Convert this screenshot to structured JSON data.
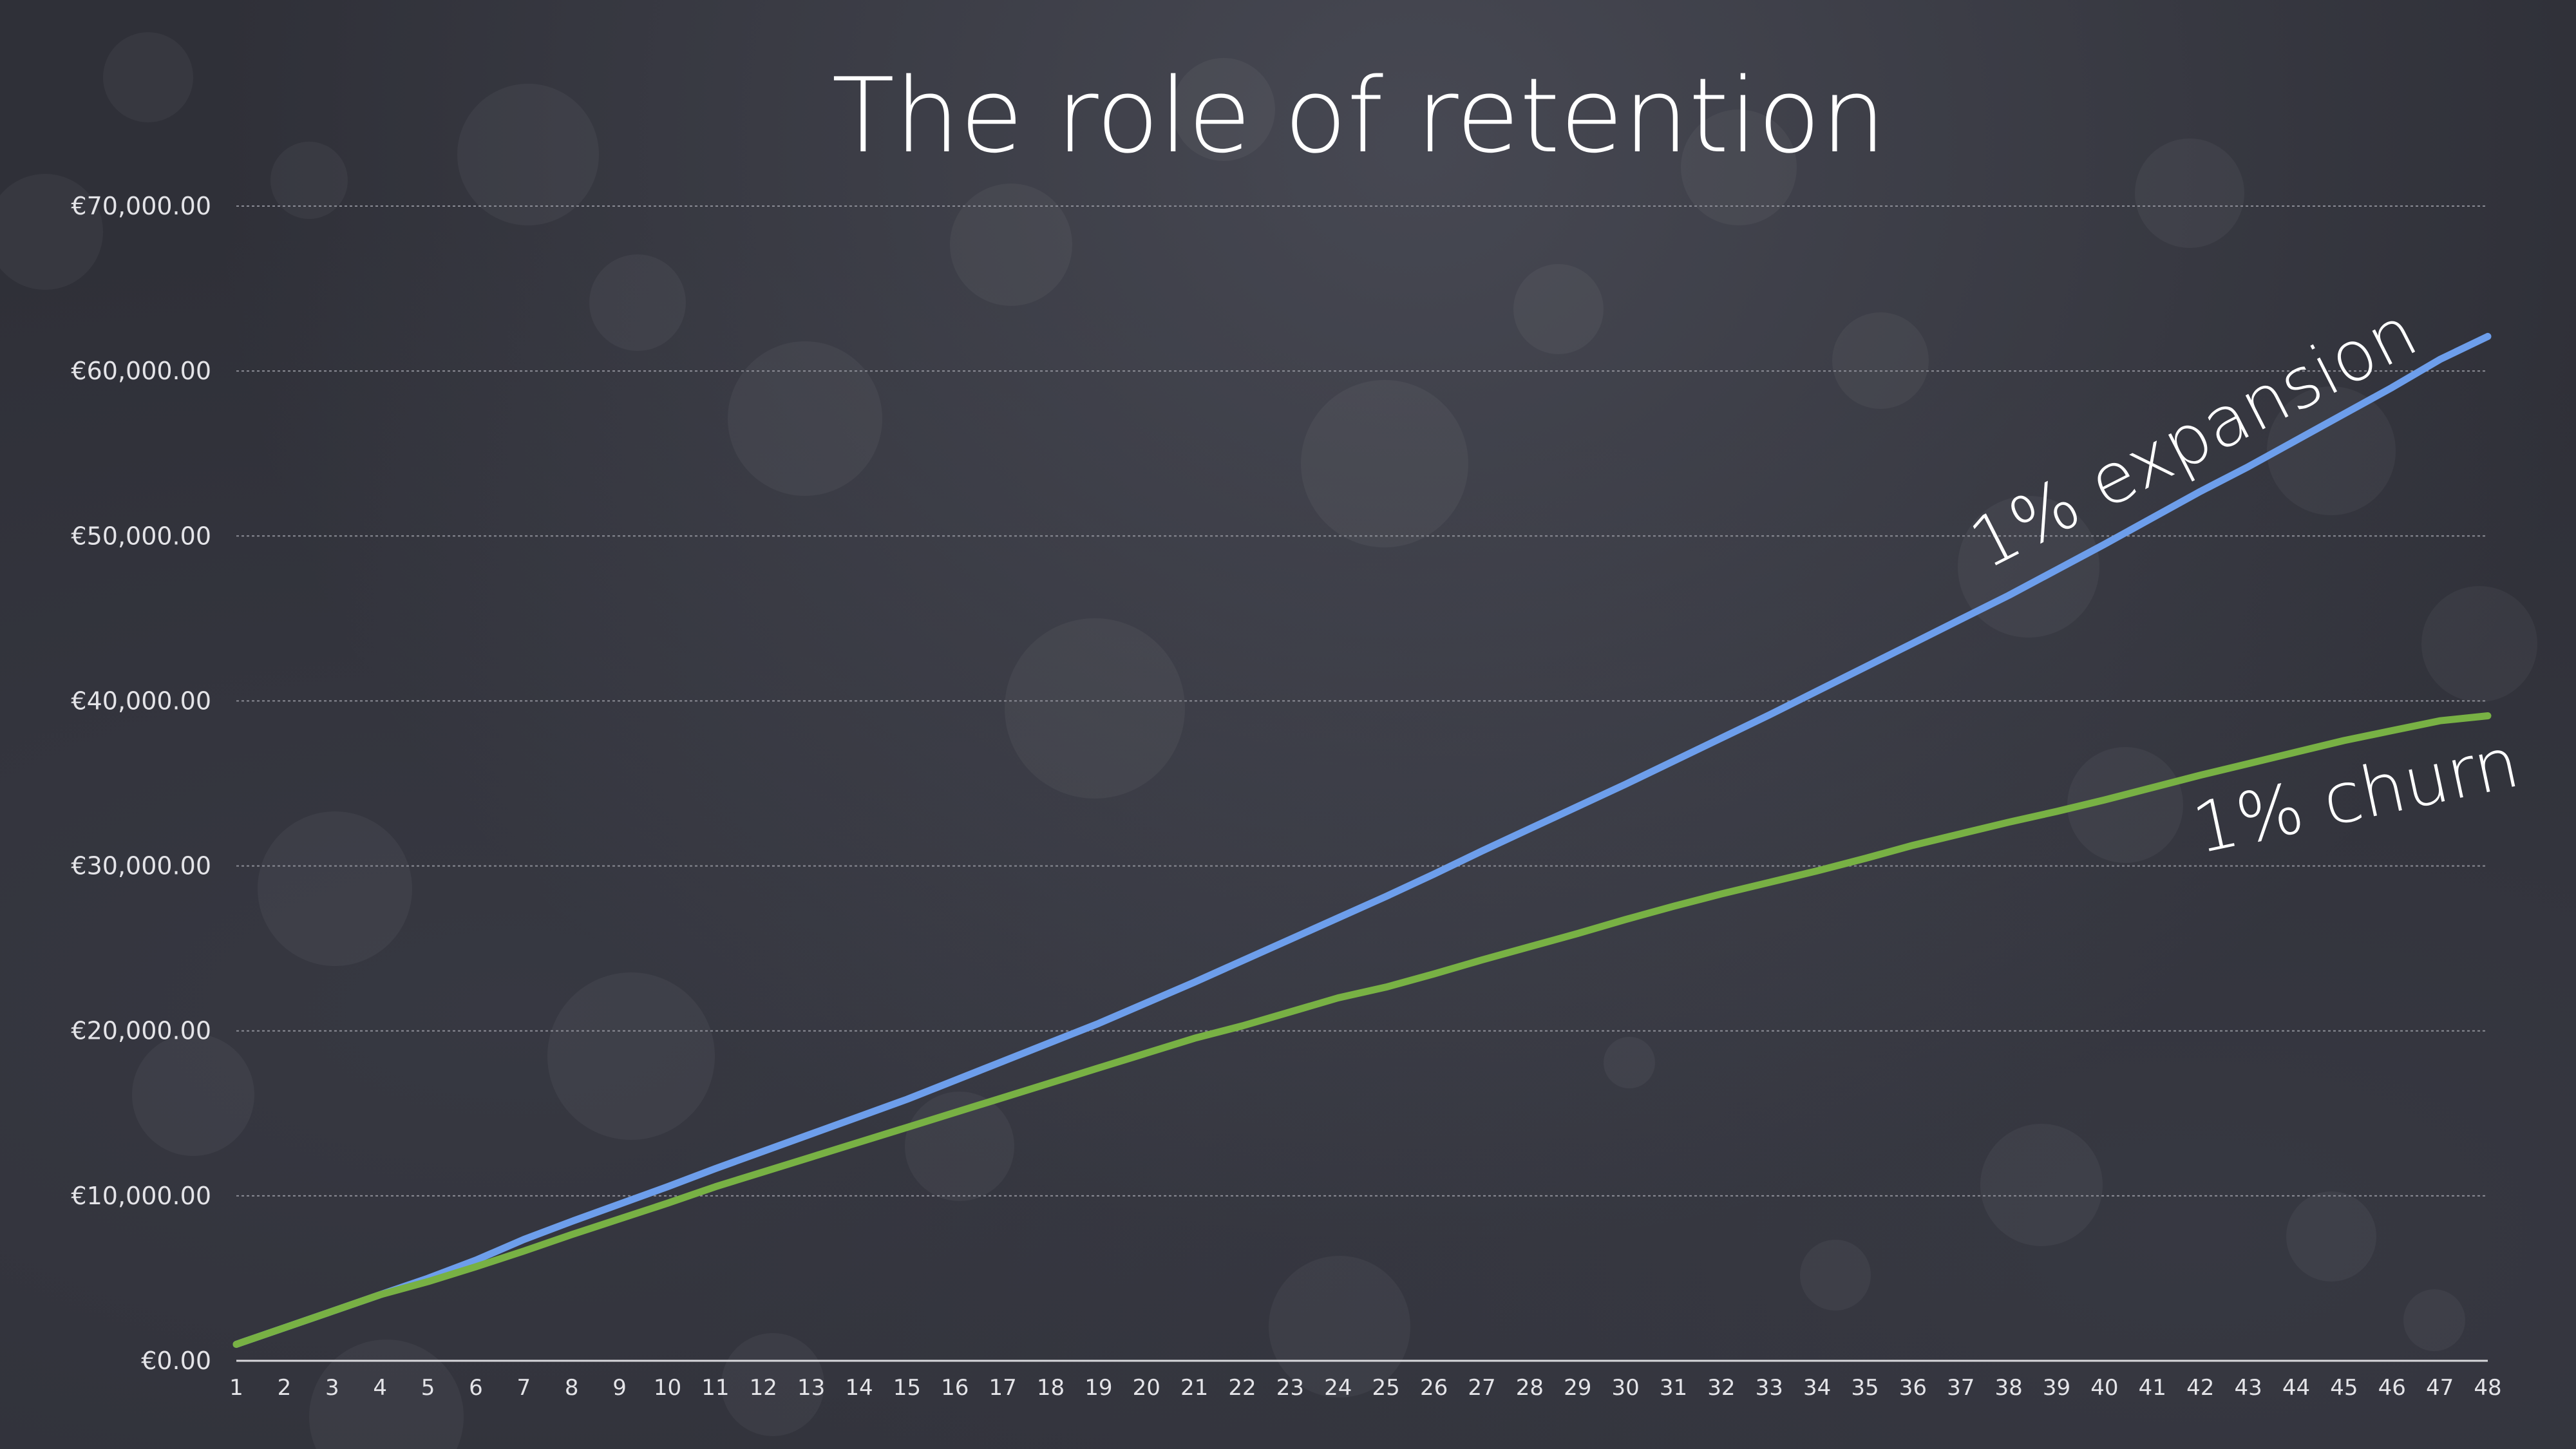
{
  "chart_data": {
    "type": "line",
    "title": "The role of retention",
    "xlabel": "",
    "ylabel": "",
    "x": [
      1,
      2,
      3,
      4,
      5,
      6,
      7,
      8,
      9,
      10,
      11,
      12,
      13,
      14,
      15,
      16,
      17,
      18,
      19,
      20,
      21,
      22,
      23,
      24,
      25,
      26,
      27,
      28,
      29,
      30,
      31,
      32,
      33,
      34,
      35,
      36,
      37,
      38,
      39,
      40,
      41,
      42,
      43,
      44,
      45,
      46,
      47,
      48
    ],
    "ylim": [
      0,
      70000
    ],
    "y_ticks": [
      0,
      10000,
      20000,
      30000,
      40000,
      50000,
      60000,
      70000
    ],
    "y_tick_labels": [
      "€0.00",
      "€10,000.00",
      "€20,000.00",
      "€30,000.00",
      "€40,000.00",
      "€50,000.00",
      "€60,000.00",
      "€70,000.00"
    ],
    "grid": true,
    "legend": "none",
    "series": [
      {
        "color": "#6d9eeb",
        "values": [
          1000,
          2000,
          3000,
          4000,
          5000,
          6100,
          7350,
          8450,
          9500,
          10550,
          11650,
          12700,
          13750,
          14800,
          15850,
          17000,
          18150,
          19300,
          20450,
          21700,
          22950,
          24250,
          25550,
          26850,
          28150,
          29500,
          30900,
          32250,
          33600,
          34950,
          36350,
          37750,
          39150,
          40600,
          42050,
          43500,
          44950,
          46400,
          47950,
          49500,
          51100,
          52700,
          54200,
          55800,
          57400,
          59000,
          60700,
          62100
        ]
      },
      {
        "color": "#78b144",
        "values": [
          1000,
          2000,
          3000,
          4000,
          4800,
          5700,
          6650,
          7650,
          8600,
          9550,
          10550,
          11450,
          12350,
          13250,
          14150,
          15050,
          15950,
          16850,
          17750,
          18650,
          19550,
          20300,
          21150,
          22000,
          22650,
          23450,
          24300,
          25100,
          25900,
          26750,
          27550,
          28300,
          29000,
          29700,
          30450,
          31250,
          31950,
          32650,
          33300,
          34000,
          34750,
          35500,
          36200,
          36900,
          37600,
          38200,
          38800,
          39100
        ]
      }
    ],
    "annotations": [
      {
        "text": "1% expansion",
        "series_index": 0
      },
      {
        "text": "1% churn",
        "series_index": 1
      }
    ]
  }
}
